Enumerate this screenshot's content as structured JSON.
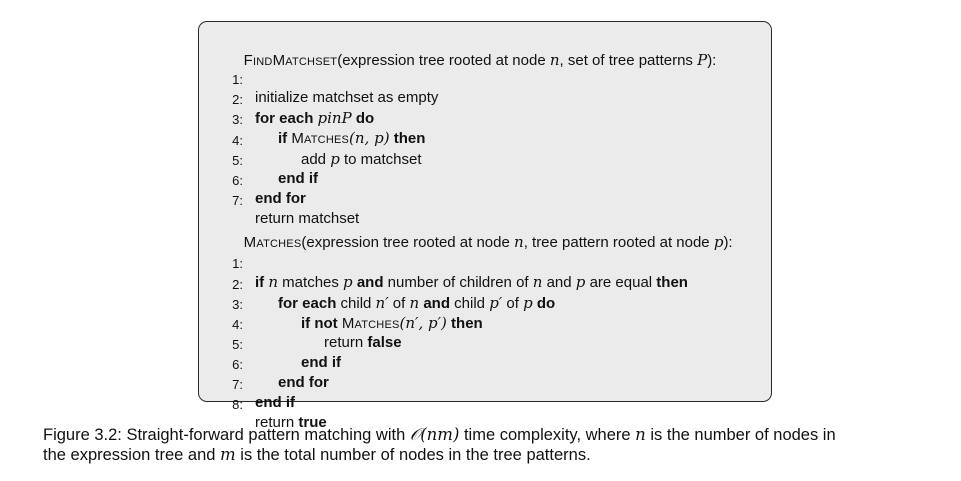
{
  "algorithm_box": {
    "find_matchset": {
      "header_name": "FindMatchset",
      "header_open": "(expression tree rooted at node ",
      "header_var_n": "n",
      "header_middle": ", set of tree patterns ",
      "header_var_P": "P",
      "header_close": "):",
      "lines": [
        {
          "num": "1:",
          "text": "initialize matchset as empty"
        },
        {
          "num": "2:",
          "kw1": "for each",
          "var": "pinP",
          "kw2": "do"
        },
        {
          "num": "3:",
          "kw1": "if",
          "fn": "Matches",
          "args": "(n, p)",
          "kw2": "then"
        },
        {
          "num": "4:",
          "pre": "add ",
          "var": "p",
          "post": " to matchset"
        },
        {
          "num": "5:",
          "kw": "end if"
        },
        {
          "num": "6:",
          "kw": "end for"
        },
        {
          "num": "7:",
          "text": "return matchset"
        }
      ]
    },
    "matches": {
      "header_name": "Matches",
      "header_open": "(expression tree rooted at node ",
      "header_var_n": "n",
      "header_middle": ", tree pattern rooted at node ",
      "header_var_p": "p",
      "header_close": "):",
      "lines": [
        {
          "num": "1:",
          "kw1": "if",
          "v1": "n",
          "t1": " matches ",
          "v2": "p",
          "kw2": "and",
          "t2": " number of children of ",
          "v3": "n",
          "t3": " and ",
          "v4": "p",
          "t4": " are equal ",
          "kw3": "then"
        },
        {
          "num": "2:",
          "kw1": "for each",
          "t1": " child ",
          "v1": "n′",
          "t2": " of ",
          "v2": "n",
          "kw2": "and",
          "t3": " child ",
          "v3": "p′",
          "t4": " of ",
          "v4": "p",
          "kw3": "do"
        },
        {
          "num": "3:",
          "kw1": "if not",
          "fn": "Matches",
          "args": "(n′, p′)",
          "kw2": "then"
        },
        {
          "num": "4:",
          "text": "return ",
          "kw": "false"
        },
        {
          "num": "5:",
          "kw": "end if"
        },
        {
          "num": "6:",
          "kw": "end for"
        },
        {
          "num": "7:",
          "kw": "end if"
        },
        {
          "num": "8:",
          "text": "return ",
          "kw": "true"
        }
      ]
    }
  },
  "caption": {
    "line1_pre": "Figure 3.2: Straight-forward pattern matching with ",
    "big_o": "𝒪(nm)",
    "line1_mid": " time complexity, where ",
    "var_n": "n",
    "line1_post": " is the number of nodes in",
    "line2_pre": "the expression tree and ",
    "var_m": "m",
    "line2_post": " is the total number of nodes in the tree patterns."
  }
}
